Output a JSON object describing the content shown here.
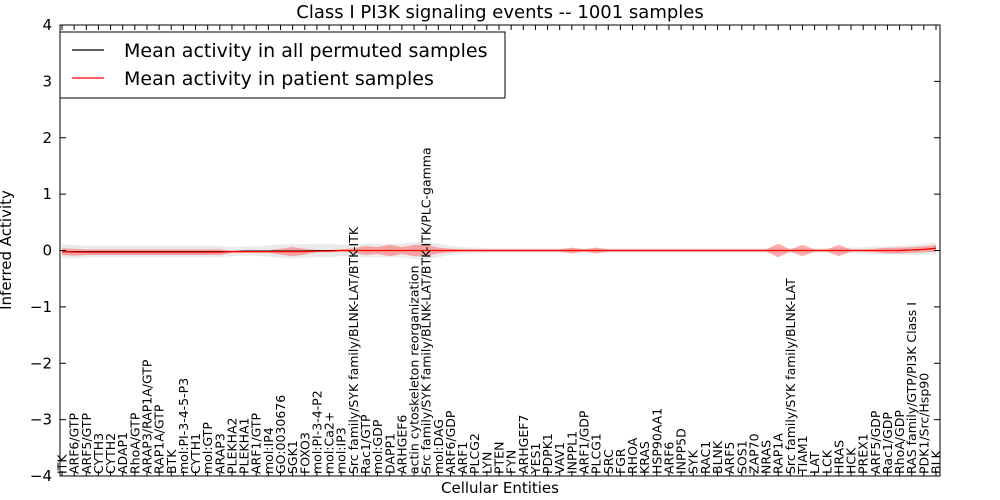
{
  "chart_data": {
    "type": "line",
    "title": "Class I PI3K signaling events -- 1001 samples",
    "xlabel": "Cellular Entities",
    "ylabel": "Inferred Activity",
    "ylim": [
      -4,
      4
    ],
    "yticks": [
      -4,
      -3,
      -2,
      -1,
      0,
      1,
      2,
      3,
      4
    ],
    "ytick_labels": [
      "−4",
      "−3",
      "−2",
      "−1",
      "0",
      "1",
      "2",
      "3",
      "4"
    ],
    "grid": false,
    "legend_position": "top-left",
    "categories": [
      "ITK",
      "ARF6/GTP",
      "ARF5/GTP",
      "CYTH3",
      "CYTH2",
      "ADAP1",
      "RhoA/GTP",
      "ARAP3/RAP1A/GTP",
      "RAP1A/GTP",
      "BTK",
      "mol:PI-3-4-5-P3",
      "CYTH1",
      "mol:GTP",
      "ARAP3",
      "PLEKHA2",
      "PLEKHA1",
      "ARF1/GTP",
      "mol:IP4",
      "GO:0030676",
      "SGK1",
      "FOXO3",
      "mol:PI-3-4-P2",
      "mol:Ca2+",
      "mol:IP3",
      "Src family/SYK family/BLNK-LAT/BTK-ITK",
      "Rac1/GTP",
      "mol:GDP",
      "DAPP1",
      "ARHGEF6",
      "actin cytoskeleton reorganization",
      "Src family/SYK family/BLNK-LAT/BTK-ITK/PLC-gamma",
      "mol:DAG",
      "ARF6/GDP",
      "ARF1",
      "PLCG2",
      "LYN",
      "PTEN",
      "FYN",
      "ARHGEF7",
      "YES1",
      "PDPK1",
      "VAV1",
      "INPPL1",
      "ARF1/GDP",
      "PLCG1",
      "SRC",
      "FGR",
      "RHOA",
      "KRAS",
      "HSP90AA1",
      "ARF6",
      "INPP5D",
      "SYK",
      "RAC1",
      "BLNK",
      "ARF5",
      "SOS1",
      "ZAP70",
      "NRAS",
      "RAP1A",
      "Src family/SYK family/BLNK-LAT",
      "TIAM1",
      "LAT",
      "LCK",
      "HRAS",
      "HCK",
      "PREX1",
      "ARF5/GDP",
      "Rac1/GDP",
      "RhoA/GDP",
      "RAS family/GTP/PI3K Class I",
      "PDK1/Src/Hsp90",
      "BLK"
    ],
    "series": [
      {
        "name": "Mean activity in all permuted samples",
        "color": "#000000",
        "values": [
          -0.02,
          -0.02,
          -0.02,
          -0.02,
          -0.02,
          -0.02,
          -0.02,
          -0.02,
          -0.02,
          -0.02,
          -0.02,
          -0.02,
          -0.02,
          -0.02,
          -0.02,
          -0.01,
          -0.01,
          -0.01,
          -0.01,
          -0.01,
          -0.01,
          0,
          0,
          0,
          0,
          0,
          0,
          0,
          0,
          0,
          0,
          0,
          0,
          0,
          0,
          0,
          0,
          0,
          0,
          0,
          0,
          0,
          0,
          0,
          0,
          0,
          0,
          0,
          0,
          0,
          0,
          0,
          0,
          0,
          0,
          0,
          0,
          0,
          0,
          0,
          0,
          0,
          0,
          0,
          0,
          0,
          0,
          0,
          0,
          0,
          0.01,
          0.02,
          0.04
        ],
        "band": [
          0.12,
          0.12,
          0.1,
          0.1,
          0.1,
          0.1,
          0.1,
          0.1,
          0.1,
          0.1,
          0.1,
          0.1,
          0.1,
          0.1,
          0.08,
          0.08,
          0.08,
          0.1,
          0.12,
          0.12,
          0.12,
          0.12,
          0.12,
          0.1,
          0.1,
          0.12,
          0.12,
          0.12,
          0.12,
          0.15,
          0.15,
          0.12,
          0.08,
          0.06,
          0.05,
          0.04,
          0.04,
          0.04,
          0.04,
          0.04,
          0.04,
          0.04,
          0.04,
          0.04,
          0.04,
          0.04,
          0.04,
          0.04,
          0.04,
          0.04,
          0.04,
          0.04,
          0.04,
          0.04,
          0.04,
          0.04,
          0.04,
          0.04,
          0.04,
          0.04,
          0.04,
          0.04,
          0.04,
          0.04,
          0.04,
          0.05,
          0.06,
          0.07,
          0.07,
          0.08,
          0.09,
          0.1,
          0.1
        ]
      },
      {
        "name": "Mean activity in patient samples",
        "color": "#ff0000",
        "values": [
          -0.02,
          -0.03,
          -0.03,
          -0.03,
          -0.03,
          -0.03,
          -0.03,
          -0.03,
          -0.03,
          -0.03,
          -0.03,
          -0.03,
          -0.03,
          -0.03,
          -0.02,
          -0.02,
          -0.02,
          -0.02,
          -0.02,
          -0.02,
          -0.02,
          -0.01,
          -0.01,
          0,
          0,
          0,
          0,
          0,
          0,
          0,
          0,
          0,
          0,
          0,
          0,
          0,
          0,
          0,
          0,
          0,
          0,
          0,
          0,
          0,
          0,
          0,
          0,
          0,
          0,
          0,
          0,
          0,
          0,
          0,
          0,
          0,
          0,
          0,
          0,
          0,
          0,
          0,
          0,
          0,
          0,
          0,
          0,
          0,
          0,
          0,
          0.01,
          0.02,
          0.04
        ],
        "band": [
          0.06,
          0.06,
          0.05,
          0.05,
          0.05,
          0.05,
          0.05,
          0.05,
          0.05,
          0.05,
          0.05,
          0.05,
          0.05,
          0.05,
          0.02,
          0.02,
          0.02,
          0.02,
          0.05,
          0.08,
          0.05,
          0.02,
          0.02,
          0.02,
          0.04,
          0.08,
          0.06,
          0.1,
          0.06,
          0.1,
          0.1,
          0.05,
          0.03,
          0.02,
          0.02,
          0.02,
          0.02,
          0.02,
          0.02,
          0.02,
          0.02,
          0.02,
          0.05,
          0.02,
          0.05,
          0.02,
          0.02,
          0.02,
          0.02,
          0.02,
          0.02,
          0.02,
          0.02,
          0.02,
          0.02,
          0.02,
          0.02,
          0.02,
          0.02,
          0.12,
          0.02,
          0.1,
          0.02,
          0.02,
          0.1,
          0.02,
          0.02,
          0.03,
          0.05,
          0.05,
          0.05,
          0.05,
          0.06
        ]
      }
    ]
  }
}
